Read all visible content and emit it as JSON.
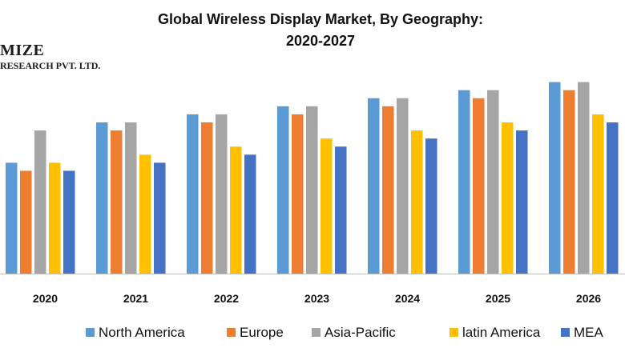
{
  "chart_data": {
    "type": "bar",
    "title_line_1": "Global Wireless Display Market, By Geography:",
    "title_line_2": "2020-2027",
    "xlabel": "",
    "ylabel": "",
    "ylim": [
      0,
      100
    ],
    "grid": false,
    "legend_position": "bottom",
    "categories": [
      "2020",
      "2021",
      "2022",
      "2023",
      "2024",
      "2025",
      "2026"
    ],
    "series": [
      {
        "name": "North America",
        "color": "#5B9BD5",
        "values": [
          55,
          75,
          79,
          83,
          87,
          91,
          95
        ]
      },
      {
        "name": "Europe",
        "color": "#ED7D31",
        "values": [
          51,
          71,
          75,
          79,
          83,
          87,
          91
        ]
      },
      {
        "name": "Asia-Pacific",
        "color": "#A5A5A5",
        "values": [
          71,
          75,
          79,
          83,
          87,
          91,
          95
        ]
      },
      {
        "name": "latin America",
        "color": "#FFC000",
        "values": [
          55,
          59,
          63,
          67,
          71,
          75,
          79
        ]
      },
      {
        "name": "MEA",
        "color": "#4472C4",
        "values": [
          51,
          55,
          59,
          63,
          67,
          71,
          75
        ]
      }
    ]
  },
  "watermark": {
    "name": "MIZE",
    "subtitle": "RESEARCH PVT. LTD."
  }
}
